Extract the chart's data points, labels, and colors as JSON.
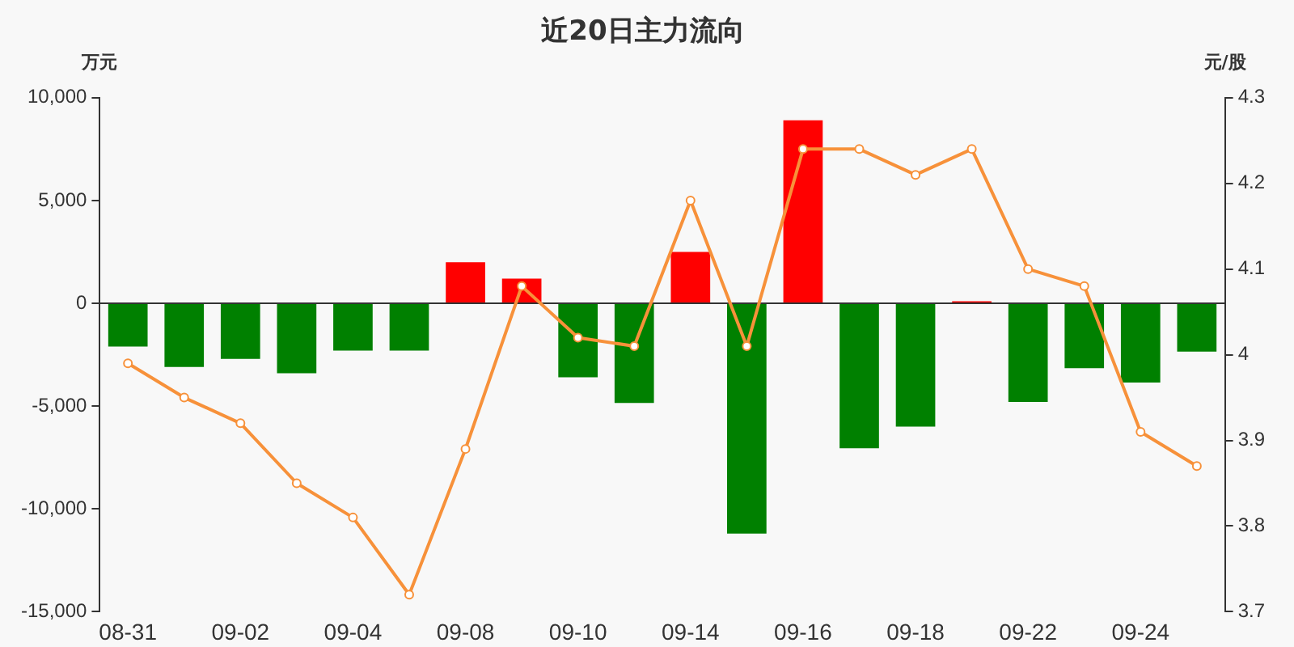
{
  "chart_data": {
    "type": "bar",
    "title": "近20日主力流向",
    "ylabel": "万元",
    "y2label": "元/股",
    "categories": [
      "08-31",
      null,
      "09-02",
      null,
      "09-04",
      null,
      "09-08",
      null,
      "09-10",
      null,
      "09-14",
      null,
      "09-16",
      null,
      "09-18",
      null,
      "09-22",
      null,
      "09-24",
      null
    ],
    "series": [
      {
        "colors": [
          "#008000",
          "#008000",
          "#008000",
          "#008000",
          "#008000",
          "#008000",
          "#ff0000",
          "#ff0000",
          "#008000",
          "#008000",
          "#ff0000",
          "#008000",
          "#ff0000",
          "#008000",
          "#008000",
          "#ff0000",
          "#008000",
          "#008000",
          "#008000",
          "#008000"
        ],
        "values": [
          -2100,
          -3100,
          -2700,
          -3400,
          -2300,
          -2300,
          2000,
          1200,
          -3600,
          -4850,
          2500,
          -11200,
          8900,
          -7050,
          -6000,
          100,
          -4800,
          -3150,
          -3850,
          -2350
        ]
      },
      {
        "type": "line",
        "axis": "y2",
        "color": "#f7913a",
        "marker": "circle",
        "values": [
          3.99,
          3.95,
          3.92,
          3.85,
          3.81,
          3.72,
          3.89,
          4.08,
          4.02,
          4.01,
          4.18,
          4.01,
          4.24,
          4.24,
          4.21,
          4.24,
          4.1,
          4.08,
          3.91,
          3.87
        ]
      }
    ],
    "ylim": [
      -15000,
      10000
    ],
    "yticks": [
      {
        "value": -15000,
        "label": "-15,000"
      },
      {
        "value": -10000,
        "label": "-10,000"
      },
      {
        "value": -5000,
        "label": "-5,000"
      },
      0,
      {
        "value": 5000,
        "label": "5,000"
      },
      {
        "value": 10000,
        "label": "10,000"
      }
    ],
    "y2lim": [
      3.7,
      4.3
    ],
    "y2ticks": [
      3.7,
      3.8,
      3.9,
      4,
      4.1,
      4.2,
      4.3
    ],
    "legend": false
  }
}
